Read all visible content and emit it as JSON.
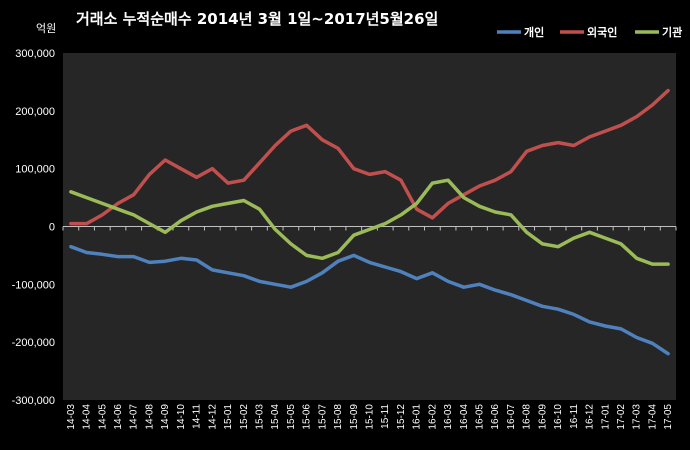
{
  "chart_data": {
    "type": "line",
    "title": "거래소 누적순매수 2014년 3월 1일~2017년5월26일",
    "unit_label": "억원",
    "ylim": [
      -300000,
      300000
    ],
    "y_ticks": [
      "300,000",
      "200,000",
      "100,000",
      "0",
      "-100,000",
      "-200,000",
      "-300,000"
    ],
    "y_tick_values": [
      300000,
      200000,
      100000,
      0,
      -100000,
      -200000,
      -300000
    ],
    "categories": [
      "14-03",
      "14-04",
      "14-05",
      "14-06",
      "14-07",
      "14-08",
      "14-09",
      "14-10",
      "14-11",
      "14-12",
      "15-01",
      "15-02",
      "15-03",
      "15-04",
      "15-05",
      "15-06",
      "15-07",
      "15-08",
      "15-09",
      "15-10",
      "15-11",
      "15-12",
      "16-01",
      "16-02",
      "16-03",
      "16-04",
      "16-05",
      "16-06",
      "16-07",
      "16-08",
      "16-09",
      "16-10",
      "16-11",
      "16-12",
      "17-01",
      "17-02",
      "17-03",
      "17-04",
      "17-05"
    ],
    "legend_position": "top-right",
    "grid": false,
    "series": [
      {
        "name": "개인",
        "color": "#4f81bd",
        "values": [
          -35000,
          -45000,
          -48000,
          -52000,
          -52000,
          -62000,
          -60000,
          -55000,
          -58000,
          -75000,
          -80000,
          -85000,
          -95000,
          -100000,
          -105000,
          -95000,
          -80000,
          -60000,
          -50000,
          -62000,
          -70000,
          -78000,
          -90000,
          -80000,
          -95000,
          -105000,
          -100000,
          -110000,
          -118000,
          -128000,
          -138000,
          -143000,
          -152000,
          -165000,
          -172000,
          -177000,
          -192000,
          -202000,
          -220000
        ]
      },
      {
        "name": "외국인",
        "color": "#c0504d",
        "values": [
          5000,
          5000,
          20000,
          40000,
          55000,
          90000,
          115000,
          100000,
          85000,
          100000,
          75000,
          80000,
          110000,
          140000,
          165000,
          175000,
          150000,
          135000,
          100000,
          90000,
          95000,
          80000,
          30000,
          15000,
          40000,
          55000,
          70000,
          80000,
          95000,
          130000,
          140000,
          145000,
          140000,
          155000,
          165000,
          175000,
          190000,
          210000,
          235000
        ]
      },
      {
        "name": "기관",
        "color": "#9bbb59",
        "values": [
          60000,
          50000,
          40000,
          30000,
          20000,
          5000,
          -10000,
          10000,
          25000,
          35000,
          40000,
          45000,
          30000,
          -5000,
          -30000,
          -50000,
          -55000,
          -45000,
          -15000,
          -5000,
          5000,
          20000,
          40000,
          75000,
          80000,
          50000,
          35000,
          25000,
          20000,
          -10000,
          -30000,
          -35000,
          -20000,
          -10000,
          -20000,
          -30000,
          -55000,
          -65000,
          -65000
        ]
      }
    ]
  }
}
